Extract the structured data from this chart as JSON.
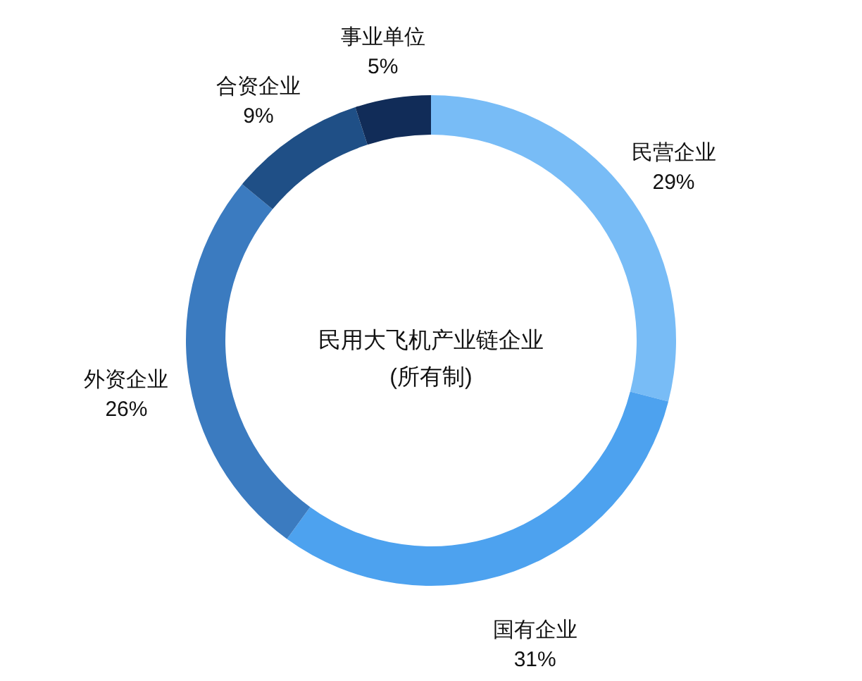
{
  "chart_data": {
    "type": "donut",
    "title": "民用大飞机产业链企业",
    "subtitle": "(所有制)",
    "categories": [
      "民营企业",
      "国有企业",
      "外资企业",
      "合资企业",
      "事业单位"
    ],
    "values": [
      29,
      31,
      26,
      9,
      5
    ],
    "value_labels": [
      "29%",
      "31%",
      "26%",
      "9%",
      "5%"
    ],
    "colors": [
      "#78bcf6",
      "#4da2ef",
      "#3b7bc0",
      "#1f4f86",
      "#112c58"
    ]
  }
}
